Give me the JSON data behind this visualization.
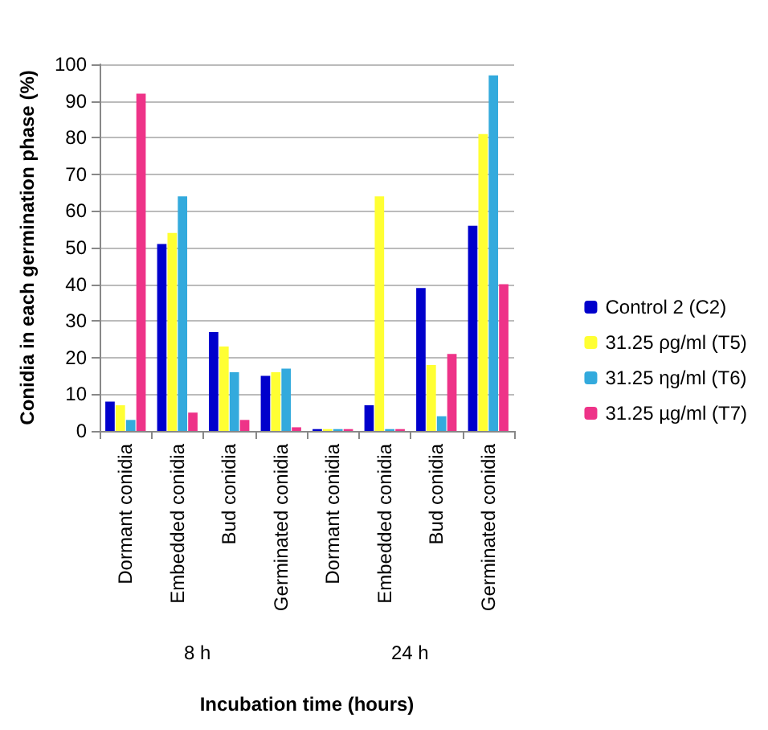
{
  "chart_data": {
    "type": "bar",
    "ylabel": "Conidia in each germination phase (%)",
    "xlabel": "Incubation time (hours)",
    "categories": [
      "Dormant conidia",
      "Embedded conidia",
      "Bud conidia",
      "Germinated conidia",
      "Dormant conidia",
      "Embedded conidia",
      "Bud conidia",
      "Germinated conidia"
    ],
    "annotations": [
      "8 h",
      "24 h"
    ],
    "series": [
      {
        "name": "Control 2 (C2)",
        "color": "#0000cc",
        "values": [
          8,
          51,
          27,
          15,
          0.5,
          7,
          39,
          56
        ]
      },
      {
        "name": "31.25 ρg/ml (T5)",
        "color": "#ffff33",
        "values": [
          7,
          54,
          23,
          16,
          0.5,
          64,
          18,
          81
        ]
      },
      {
        "name": "31.25 ηg/ml (T6)",
        "color": "#33aadd",
        "values": [
          3,
          64,
          16,
          17,
          0.5,
          0.5,
          4,
          97
        ]
      },
      {
        "name": "31.25 µg/ml (T7)",
        "color": "#ee3388",
        "values": [
          92,
          5,
          3,
          1,
          0.5,
          0.5,
          21,
          40
        ]
      }
    ],
    "ylim": [
      0,
      100
    ],
    "yticks": [
      0,
      10,
      20,
      30,
      40,
      50,
      60,
      70,
      80,
      90,
      100
    ],
    "grid": "y",
    "legend": "right"
  }
}
